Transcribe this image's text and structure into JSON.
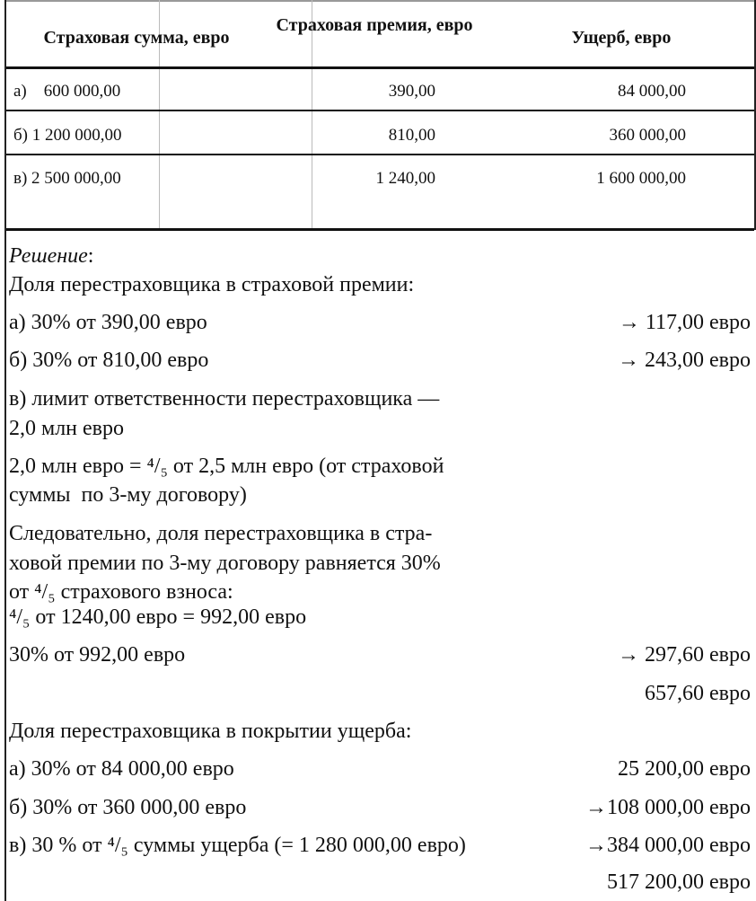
{
  "table": {
    "headers": [
      "Страховая сумма, евро",
      "Страховая премия, евро",
      "Ущерб, евро"
    ],
    "rows": [
      {
        "sum": "а)    600 000,00",
        "premium": "390,00",
        "damage": "84 000,00"
      },
      {
        "sum": "б) 1 200 000,00",
        "premium": "810,00",
        "damage": "360 000,00"
      },
      {
        "sum": "в) 2 500 000,00",
        "premium": "1 240,00",
        "damage": "1 600 000,00"
      }
    ]
  },
  "solution": {
    "heading": "Решение",
    "heading_suffix": ":",
    "lines": [
      {
        "left": "Доля перестраховщика в страховой премии:",
        "right": ""
      },
      {
        "left": "а) 30% от 390,00 евро",
        "right": "→ 117,00 евро"
      },
      {
        "left": "б) 30% от 810,00 евро",
        "right": "→ 243,00 евро"
      },
      {
        "left": "в) лимит ответственности перестраховщика —",
        "right": ""
      },
      {
        "left": "2,0 млн евро",
        "right": ""
      },
      {
        "left": "2,0 млн евро = ⁴/₅ от 2,5 млн евро (от страховой",
        "right": ""
      },
      {
        "left": "суммы  по 3-му договору)",
        "right": ""
      },
      {
        "left": "Следовательно, доля перестраховщика в стра-",
        "right": ""
      },
      {
        "left": "ховой премии по 3-му договору равняется 30%",
        "right": ""
      },
      {
        "left": "от ⁴/₅ страхового взноса:",
        "right": ""
      },
      {
        "left": "⁴/₅ от 1240,00 евро = 992,00 евро",
        "right": ""
      },
      {
        "left": "30% от 992,00 евро",
        "right": "→ 297,60 евро"
      },
      {
        "left": "",
        "right": "657,60 евро"
      },
      {
        "left": "Доля перестраховщика в покрытии ущерба:",
        "right": ""
      },
      {
        "left": "а) 30% от 84 000,00 евро",
        "right": "25 200,00 евро"
      },
      {
        "left": "б) 30% от 360 000,00 евро",
        "right": "→108 000,00 евро"
      },
      {
        "left": "в) 30 % от ⁴/₅ суммы ущерба (= 1 280 000,00 евро)",
        "right": "→384 000,00 евро"
      },
      {
        "left": "",
        "right": "517 200,00 евро"
      }
    ]
  }
}
